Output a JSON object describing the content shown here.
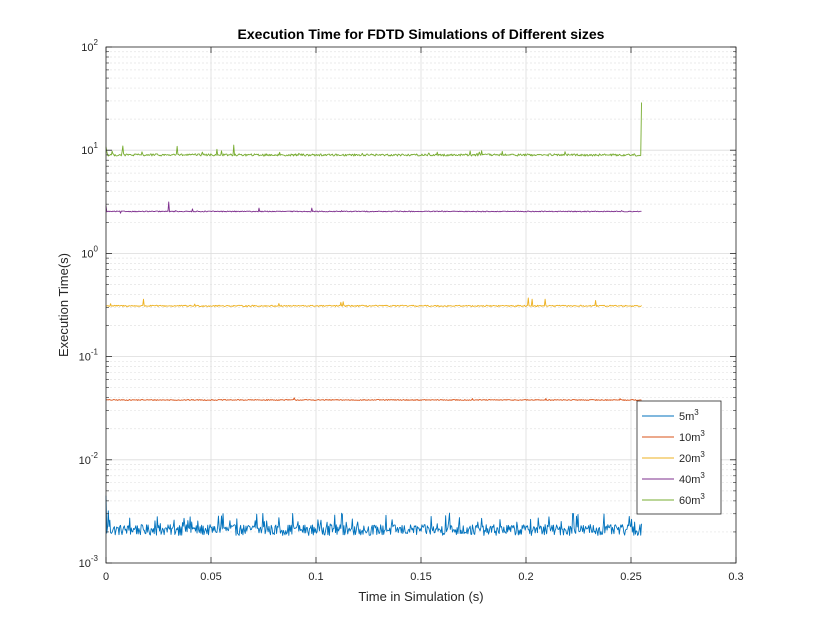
{
  "chart_data": {
    "type": "line",
    "title": "Execution Time for FDTD Simulations of Different sizes",
    "xlabel": "Time in Simulation (s)",
    "ylabel": "Execution Time(s)",
    "x_scale": "linear",
    "y_scale": "log",
    "xlim": [
      0,
      0.3
    ],
    "ylim": [
      0.001,
      100
    ],
    "grid": true,
    "minor_grid": true,
    "legend_position": "right",
    "x_ticks": [
      "0",
      "0.05",
      "0.1",
      "0.15",
      "0.2",
      "0.25",
      "0.3"
    ],
    "x_tick_values": [
      0,
      0.05,
      0.1,
      0.15,
      0.2,
      0.25,
      0.3
    ],
    "y_ticks": [
      {
        "base": "10",
        "exp": "-3"
      },
      {
        "base": "10",
        "exp": "-2"
      },
      {
        "base": "10",
        "exp": "-1"
      },
      {
        "base": "10",
        "exp": "0"
      },
      {
        "base": "10",
        "exp": "1"
      },
      {
        "base": "10",
        "exp": "2"
      }
    ],
    "y_tick_values": [
      0.001,
      0.01,
      0.1,
      1,
      10,
      100
    ],
    "x_end": 0.255,
    "series": [
      {
        "name": "5m",
        "sup": "3",
        "color": "#0072BD",
        "baseline": 0.0021,
        "noise": 0.12,
        "spike_count": 90,
        "spike_max": 0.45,
        "events": [
          [
            0,
            0.0045
          ],
          [
            0.001,
            0.0032
          ],
          [
            0.002,
            0.0026
          ],
          [
            0.255,
            0.0024
          ]
        ]
      },
      {
        "name": "10m",
        "sup": "3",
        "color": "#D95319",
        "baseline": 0.038,
        "noise": 0.01,
        "spike_count": 4,
        "spike_max": 0.05,
        "events": []
      },
      {
        "name": "20m",
        "sup": "3",
        "color": "#EDB120",
        "baseline": 0.31,
        "noise": 0.015,
        "spike_count": 10,
        "spike_max": 0.1,
        "events": [
          [
            0.018,
            0.36
          ],
          [
            0.113,
            0.34
          ],
          [
            0.201,
            0.37
          ],
          [
            0.203,
            0.36
          ],
          [
            0.209,
            0.36
          ],
          [
            0.233,
            0.35
          ]
        ]
      },
      {
        "name": "40m",
        "sup": "3",
        "color": "#7E2F8E",
        "baseline": 2.55,
        "noise": 0.01,
        "spike_count": 4,
        "spike_max": 0.04,
        "events": [
          [
            0.0,
            2.9
          ],
          [
            0.007,
            2.45
          ],
          [
            0.03,
            3.15
          ],
          [
            0.033,
            2.6
          ],
          [
            0.041,
            2.7
          ],
          [
            0.073,
            2.75
          ],
          [
            0.098,
            2.75
          ]
        ]
      },
      {
        "name": "60m",
        "sup": "3",
        "color": "#77AC30",
        "baseline": 9.0,
        "noise": 0.025,
        "spike_count": 25,
        "spike_max": 0.1,
        "events": [
          [
            0.0,
            10.8
          ],
          [
            0.008,
            11.0
          ],
          [
            0.034,
            10.9
          ],
          [
            0.053,
            10.2
          ],
          [
            0.061,
            11.2
          ],
          [
            0.254,
            8.9
          ],
          [
            0.255,
            29.0
          ]
        ]
      }
    ]
  }
}
